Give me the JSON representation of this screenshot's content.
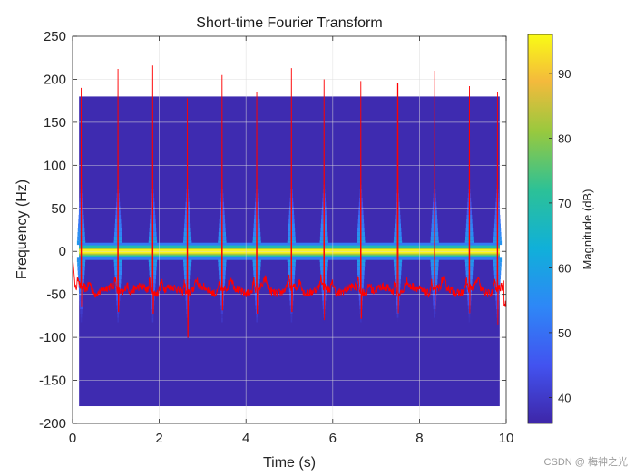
{
  "chart_data": {
    "type": "heatmap",
    "title": "Short-time Fourier Transform",
    "xlabel": "Time (s)",
    "ylabel": "Frequency (Hz)",
    "xlim": [
      0,
      10
    ],
    "ylim": [
      -200,
      250
    ],
    "xticks": [
      0,
      2,
      4,
      6,
      8,
      10
    ],
    "yticks": [
      -200,
      -150,
      -100,
      -50,
      0,
      50,
      100,
      150,
      200,
      250
    ],
    "grid": true,
    "spectrogram": {
      "time_range": [
        0.15,
        9.85
      ],
      "frequency_range": [
        -180,
        180
      ],
      "background_db": 37,
      "dc_band_db": 95,
      "beat_times": [
        0.2,
        1.05,
        1.85,
        2.65,
        3.45,
        4.25,
        5.05,
        5.8,
        6.65,
        7.5,
        8.35,
        9.15,
        9.8
      ]
    },
    "colorbar": {
      "label": "Magnitude (dB)",
      "range": [
        36,
        96
      ],
      "ticks": [
        40,
        50,
        60,
        70,
        80,
        90
      ],
      "colormap": "parula"
    },
    "overlay_series": {
      "color": "#ff0000",
      "baseline_hz": -45,
      "spike_times": [
        0.2,
        1.05,
        1.85,
        2.65,
        3.45,
        4.25,
        5.05,
        5.8,
        6.65,
        7.5,
        8.35,
        9.15,
        9.8
      ],
      "spike_peaks_hz": [
        190,
        212,
        216,
        178,
        205,
        185,
        213,
        200,
        198,
        195,
        210,
        192,
        185
      ],
      "spike_troughs_hz": [
        -65,
        -70,
        -72,
        -100,
        -68,
        -72,
        -70,
        -80,
        -78,
        -72,
        -70,
        -72,
        -85
      ]
    }
  },
  "watermark": "CSDN @ 梅神之光"
}
